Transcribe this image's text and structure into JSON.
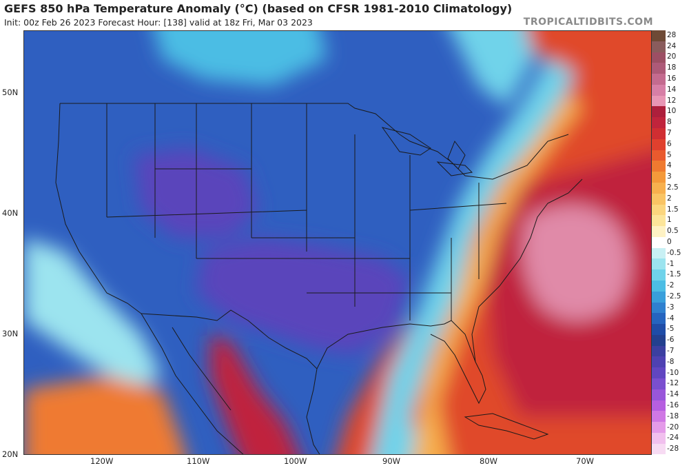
{
  "header": {
    "title": "GEFS 850 hPa Temperature Anomaly (°C) (based on CFSR 1981-2010 Climatology)",
    "subtitle": "Init: 00z Feb 26 2023   Forecast Hour: [138]   valid at 18z Fri, Mar 03 2023",
    "brand": "TROPICALTIDBITS.COM"
  },
  "axes": {
    "lat_labels": [
      "50N",
      "40N",
      "30N",
      "20N"
    ],
    "lon_labels": [
      "120W",
      "110W",
      "100W",
      "90W",
      "80W",
      "70W"
    ]
  },
  "colorbar": {
    "labels": [
      "28",
      "24",
      "20",
      "18",
      "16",
      "14",
      "12",
      "10",
      "8",
      "7",
      "6",
      "5",
      "4",
      "3",
      "2.5",
      "2",
      "1.5",
      "1",
      "0.5",
      "0",
      "-0.5",
      "-1",
      "-1.5",
      "-2",
      "-2.5",
      "-3",
      "-4",
      "-5",
      "-6",
      "-7",
      "-8",
      "-10",
      "-12",
      "-14",
      "-16",
      "-18",
      "-20",
      "-24",
      "-28"
    ],
    "colors": [
      "#6e4a36",
      "#8a5c5c",
      "#9c4f64",
      "#ad5a78",
      "#c46b8f",
      "#d77fa6",
      "#e896b5",
      "#ad1f3c",
      "#c0243c",
      "#d02e32",
      "#e0402e",
      "#e95a2e",
      "#ef7a30",
      "#f4993a",
      "#f7b04e",
      "#f9c464",
      "#fbd67e",
      "#fce59a",
      "#fef2c4",
      "#ffffff",
      "#c8f0f4",
      "#9ce4ef",
      "#6fd3ea",
      "#4cbde4",
      "#399fdb",
      "#2f80cf",
      "#2564bf",
      "#1f4ca7",
      "#23408f",
      "#3b3fa1",
      "#4e41b2",
      "#6146c1",
      "#7a4fcf",
      "#9856da",
      "#b65fe0",
      "#cf78e4",
      "#e49be9",
      "#f1c0ee",
      "#f7dbf3"
    ]
  }
}
